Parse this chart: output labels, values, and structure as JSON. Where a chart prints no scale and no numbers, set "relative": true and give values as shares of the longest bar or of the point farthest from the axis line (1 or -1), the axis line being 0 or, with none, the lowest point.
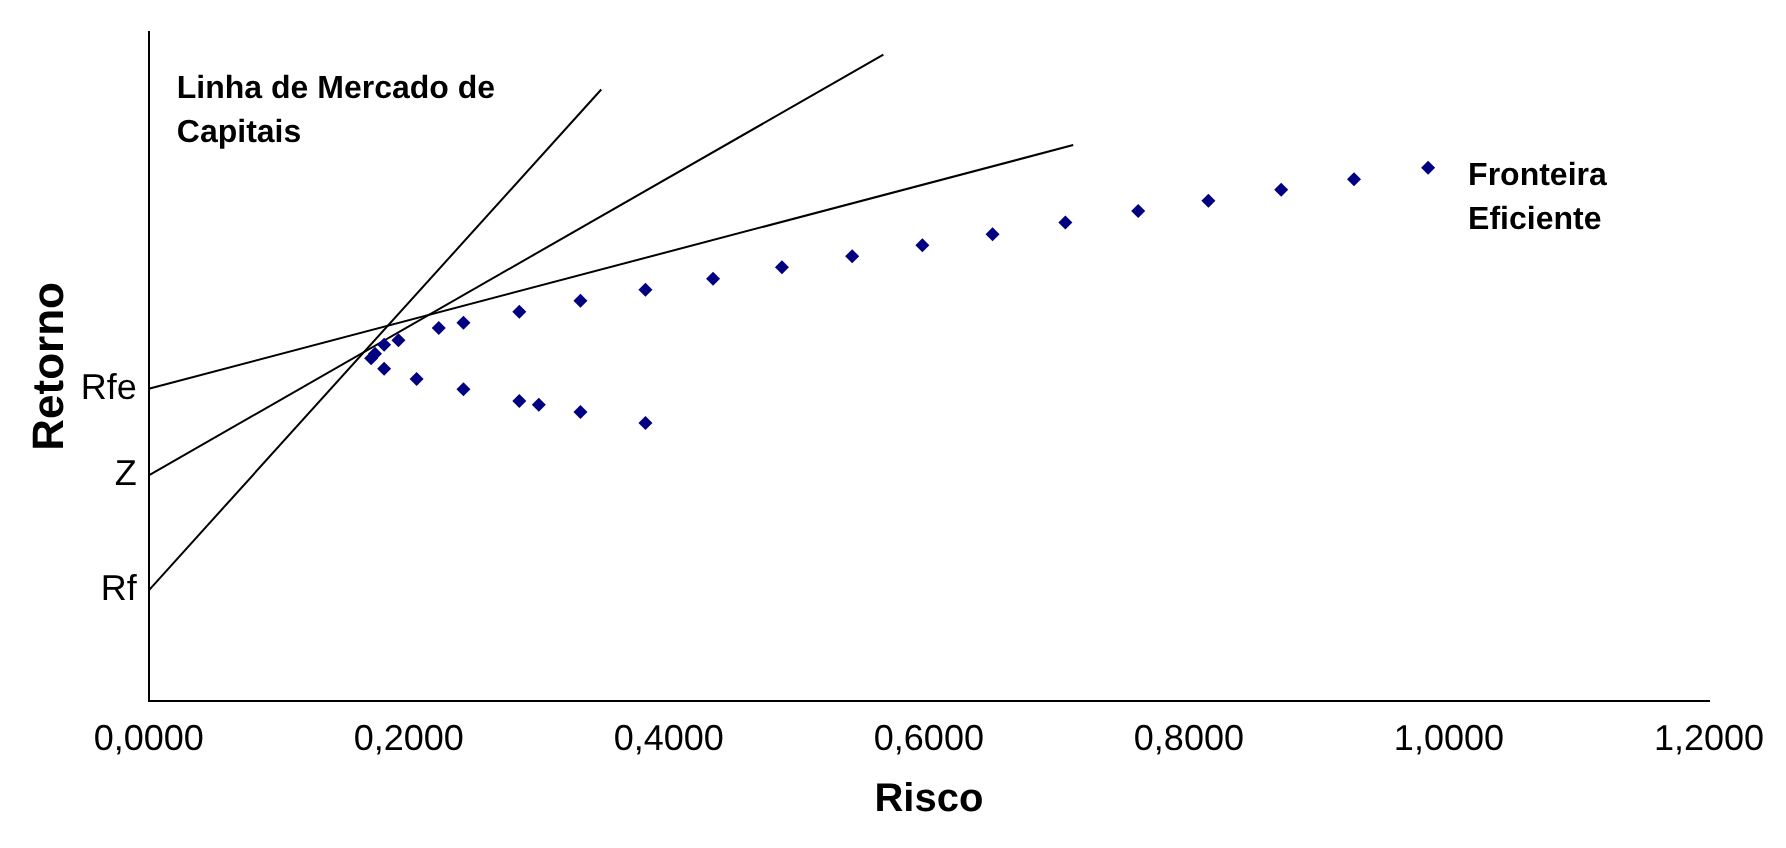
{
  "chart_data": {
    "type": "scatter",
    "xlabel": "Risco",
    "ylabel": "Retorno",
    "relative": true,
    "xlim": [
      0,
      1.2
    ],
    "xticks": [
      {
        "value": 0,
        "label": "0,0000"
      },
      {
        "value": 0.2,
        "label": "0,2000"
      },
      {
        "value": 0.4,
        "label": "0,4000"
      },
      {
        "value": 0.6,
        "label": "0,6000"
      },
      {
        "value": 0.8,
        "label": "0,8000"
      },
      {
        "value": 1,
        "label": "1,0000"
      },
      {
        "value": 1.2,
        "label": "1,2000"
      }
    ],
    "grid": false,
    "legend": false,
    "line_style": "solid",
    "series": [
      {
        "name": "Fronteira Eficiente",
        "marker": "diamond",
        "color": "#000080",
        "x": [
          0.984,
          0.927,
          0.871,
          0.815,
          0.761,
          0.705,
          0.649,
          0.595,
          0.541,
          0.487,
          0.434,
          0.382,
          0.332,
          0.285,
          0.242,
          0.223,
          0.192,
          0.181,
          0.174,
          0.171,
          0.181,
          0.206,
          0.242,
          0.285,
          0.3,
          0.332,
          0.382
        ],
        "values": [
          0.825,
          0.807,
          0.791,
          0.774,
          0.758,
          0.74,
          0.722,
          0.705,
          0.688,
          0.671,
          0.653,
          0.636,
          0.619,
          0.602,
          0.585,
          0.577,
          0.558,
          0.551,
          0.537,
          0.53,
          0.514,
          0.498,
          0.482,
          0.464,
          0.458,
          0.447,
          0.43
        ]
      },
      {
        "name": "Linha de Mercado de Capitais",
        "type": "line",
        "marker": "none",
        "color": "#000000",
        "x": [
          0,
          0.348
        ],
        "values": [
          0.171,
          0.946
        ]
      },
      {
        "type": "line",
        "marker": "none",
        "color": "#000000",
        "x": [
          0,
          0.565
        ],
        "values": [
          0.349,
          1
        ]
      },
      {
        "type": "line",
        "marker": "none",
        "color": "#000000",
        "x": [
          0,
          0.711
        ],
        "values": [
          0.483,
          0.86
        ]
      }
    ],
    "annotations": [
      "Rf",
      "Z",
      "Rfe"
    ]
  }
}
